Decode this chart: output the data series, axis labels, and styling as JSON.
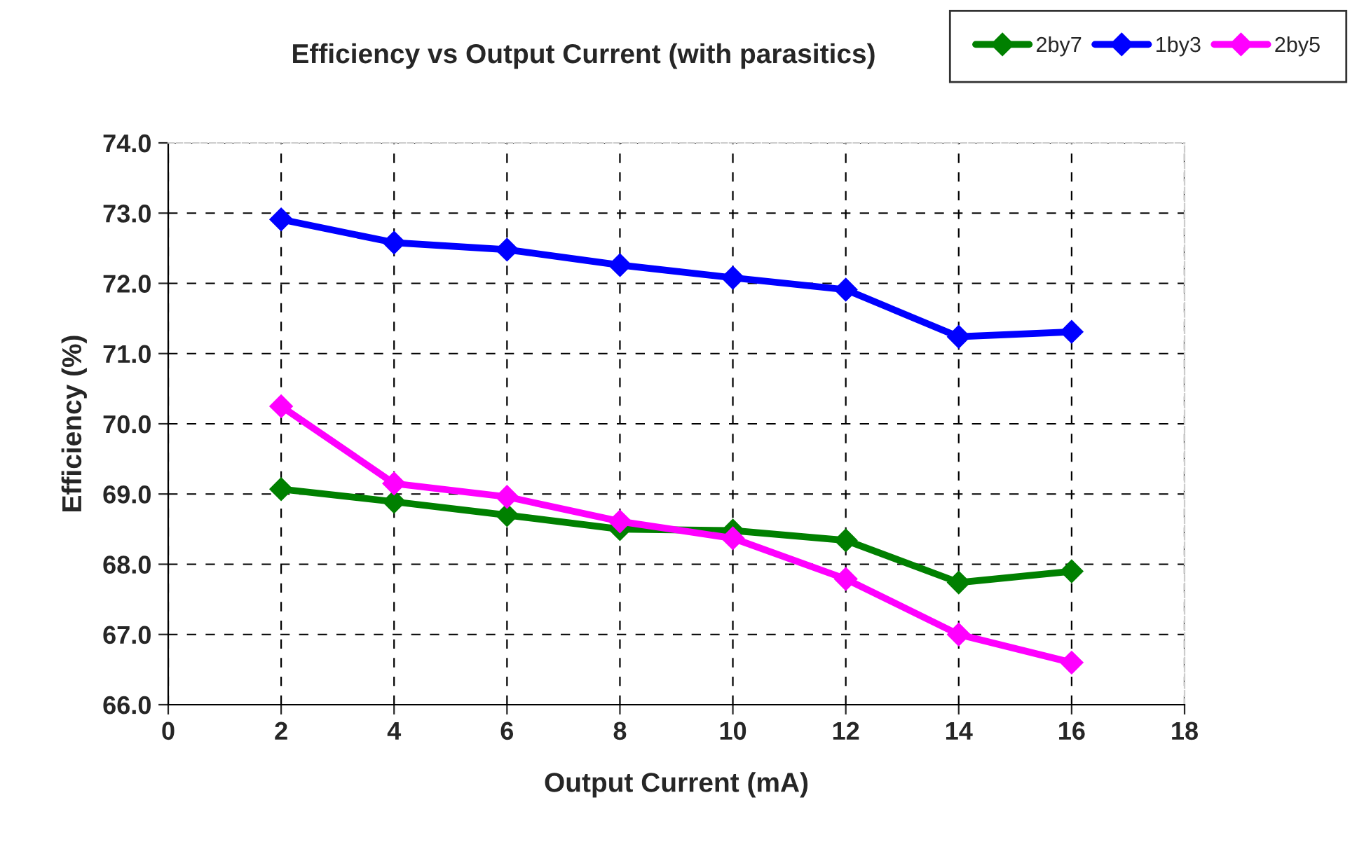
{
  "chart_data": {
    "type": "line",
    "title": "Efficiency vs Output Current (with parasitics)",
    "xlabel": "Output Current (mA)",
    "ylabel": "Efficiency (%)",
    "x": [
      2,
      4,
      6,
      8,
      10,
      12,
      14,
      16
    ],
    "series": [
      {
        "name": "2by7",
        "color": "#008000",
        "values": [
          69.07,
          68.89,
          68.7,
          68.5,
          68.48,
          68.34,
          67.74,
          67.9
        ]
      },
      {
        "name": "1by3",
        "color": "#0000ff",
        "values": [
          72.91,
          72.58,
          72.48,
          72.26,
          72.08,
          71.91,
          71.24,
          71.31
        ]
      },
      {
        "name": "2by5",
        "color": "#ff00ff",
        "values": [
          70.25,
          69.15,
          68.96,
          68.61,
          68.37,
          67.79,
          67.0,
          66.6
        ]
      }
    ],
    "xlim": [
      0,
      18
    ],
    "xticks": [
      0,
      2,
      4,
      6,
      8,
      10,
      12,
      14,
      16,
      18
    ],
    "ylim": [
      66,
      74
    ],
    "yticks": [
      {
        "value": 66,
        "label": "66.0"
      },
      {
        "value": 67,
        "label": "67.0"
      },
      {
        "value": 68,
        "label": "68.0"
      },
      {
        "value": 69,
        "label": "69.0"
      },
      {
        "value": 70,
        "label": "70.0"
      },
      {
        "value": 71,
        "label": "71.0"
      },
      {
        "value": 72,
        "label": "72.0"
      },
      {
        "value": 73,
        "label": "73.0"
      },
      {
        "value": 74,
        "label": "74.0"
      }
    ],
    "grid": true,
    "legend": "top right",
    "marker": "diamond",
    "line_style": "solid"
  }
}
